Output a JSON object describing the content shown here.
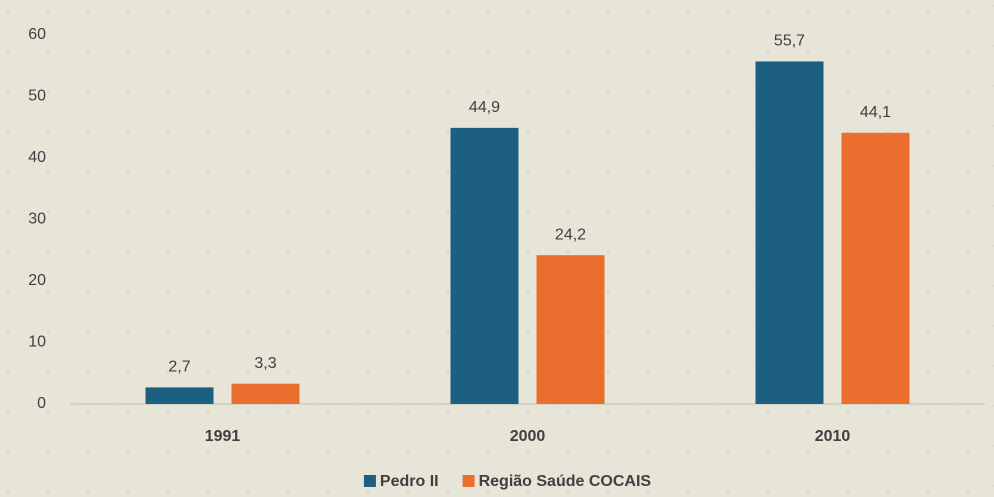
{
  "chart_data": {
    "type": "bar",
    "categories": [
      "1991",
      "2000",
      "2010"
    ],
    "series": [
      {
        "name": "Pedro II",
        "color": "#1d5f80",
        "values": [
          2.7,
          44.9,
          55.7
        ],
        "value_labels": [
          "2,7",
          "44,9",
          "55,7"
        ]
      },
      {
        "name": "Região Saúde COCAIS",
        "color": "#ea6f2f",
        "values": [
          3.3,
          24.2,
          44.1
        ],
        "value_labels": [
          "3,3",
          "24,2",
          "44,1"
        ]
      }
    ],
    "ylim": [
      0,
      60
    ],
    "yticks": [
      0,
      10,
      20,
      30,
      40,
      50,
      60
    ],
    "grid": false,
    "legend": "bottom"
  }
}
